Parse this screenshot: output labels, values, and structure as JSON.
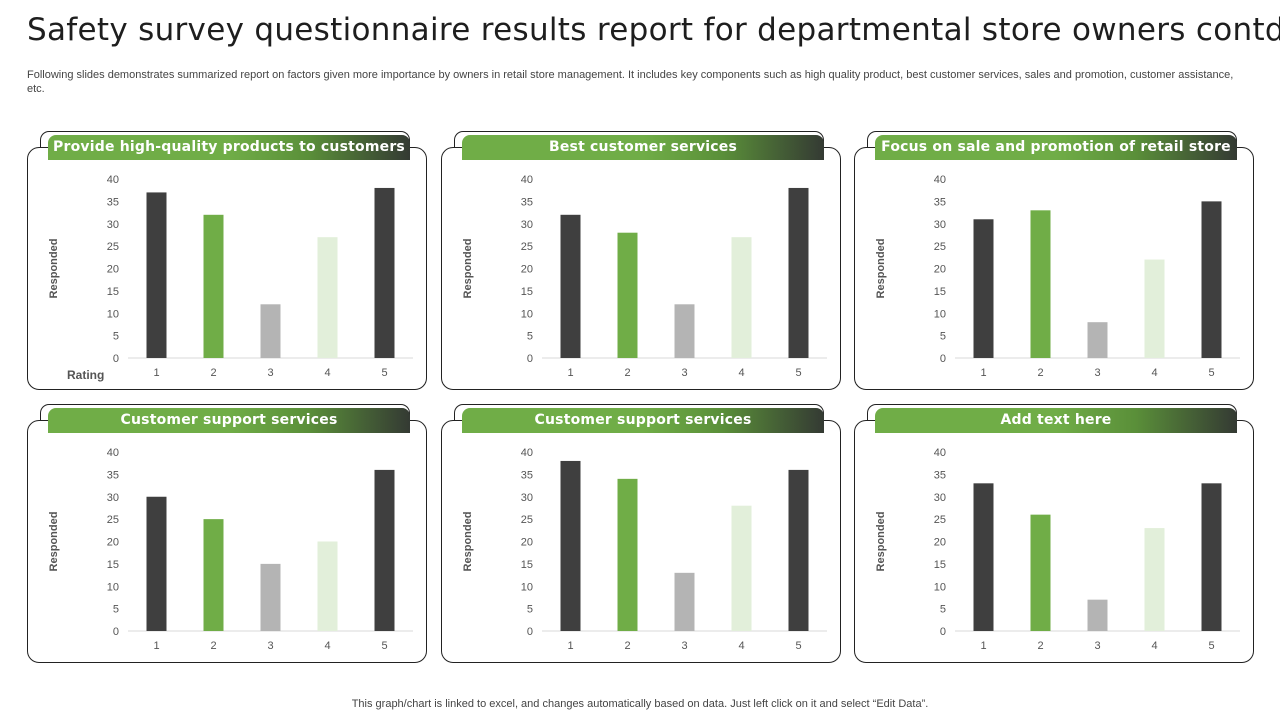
{
  "page": {
    "title": "Safety survey questionnaire results report for departmental store owners contd.",
    "subtitle": "Following slides demonstrates summarized report on factors given more importance by owners in retail store management. It includes key components such as high quality product, best customer services, sales and promotion, customer assistance, etc.",
    "footer": "This graph/chart is linked to excel, and changes automatically based on data. Just left click on it and select “Edit Data”."
  },
  "colors": {
    "accent_green": "#70ad47",
    "dark_bar": "#3f3f3f",
    "green_bar": "#70ad47",
    "gray_bar": "#b4b4b4",
    "light_green_bar": "#e2efda"
  },
  "chart_data": [
    {
      "type": "bar",
      "title": "Provide high-quality products to customers",
      "categories": [
        "1",
        "2",
        "3",
        "4",
        "5"
      ],
      "values": [
        37,
        32,
        12,
        27,
        38
      ],
      "xlabel": "Rating",
      "ylabel": "Responded",
      "ylim": [
        0,
        40
      ],
      "yticks": [
        "0",
        "5",
        "10",
        "15",
        "20",
        "25",
        "30",
        "35",
        "40"
      ]
    },
    {
      "type": "bar",
      "title": "Best customer services",
      "categories": [
        "1",
        "2",
        "3",
        "4",
        "5"
      ],
      "values": [
        32,
        28,
        12,
        27,
        38
      ],
      "xlabel": "",
      "ylabel": "Responded",
      "ylim": [
        0,
        40
      ],
      "yticks": [
        "0",
        "5",
        "10",
        "15",
        "20",
        "25",
        "30",
        "35",
        "40"
      ]
    },
    {
      "type": "bar",
      "title": "Focus on sale and promotion of retail store",
      "categories": [
        "1",
        "2",
        "3",
        "4",
        "5"
      ],
      "values": [
        31,
        33,
        8,
        22,
        35
      ],
      "xlabel": "",
      "ylabel": "Responded",
      "ylim": [
        0,
        40
      ],
      "yticks": [
        "0",
        "5",
        "10",
        "15",
        "20",
        "25",
        "30",
        "35",
        "40"
      ]
    },
    {
      "type": "bar",
      "title": "Customer support services",
      "categories": [
        "1",
        "2",
        "3",
        "4",
        "5"
      ],
      "values": [
        30,
        25,
        15,
        20,
        36
      ],
      "xlabel": "",
      "ylabel": "Responded",
      "ylim": [
        0,
        40
      ],
      "yticks": [
        "0",
        "5",
        "10",
        "15",
        "20",
        "25",
        "30",
        "35",
        "40"
      ]
    },
    {
      "type": "bar",
      "title": "Customer support services",
      "categories": [
        "1",
        "2",
        "3",
        "4",
        "5"
      ],
      "values": [
        38,
        34,
        13,
        28,
        36
      ],
      "xlabel": "",
      "ylabel": "Responded",
      "ylim": [
        0,
        40
      ],
      "yticks": [
        "0",
        "5",
        "10",
        "15",
        "20",
        "25",
        "30",
        "35",
        "40"
      ]
    },
    {
      "type": "bar",
      "title": "Add text here",
      "categories": [
        "1",
        "2",
        "3",
        "4",
        "5"
      ],
      "values": [
        33,
        26,
        7,
        23,
        33
      ],
      "xlabel": "",
      "ylabel": "Responded",
      "ylim": [
        0,
        40
      ],
      "yticks": [
        "0",
        "5",
        "10",
        "15",
        "20",
        "25",
        "30",
        "35",
        "40"
      ]
    }
  ]
}
